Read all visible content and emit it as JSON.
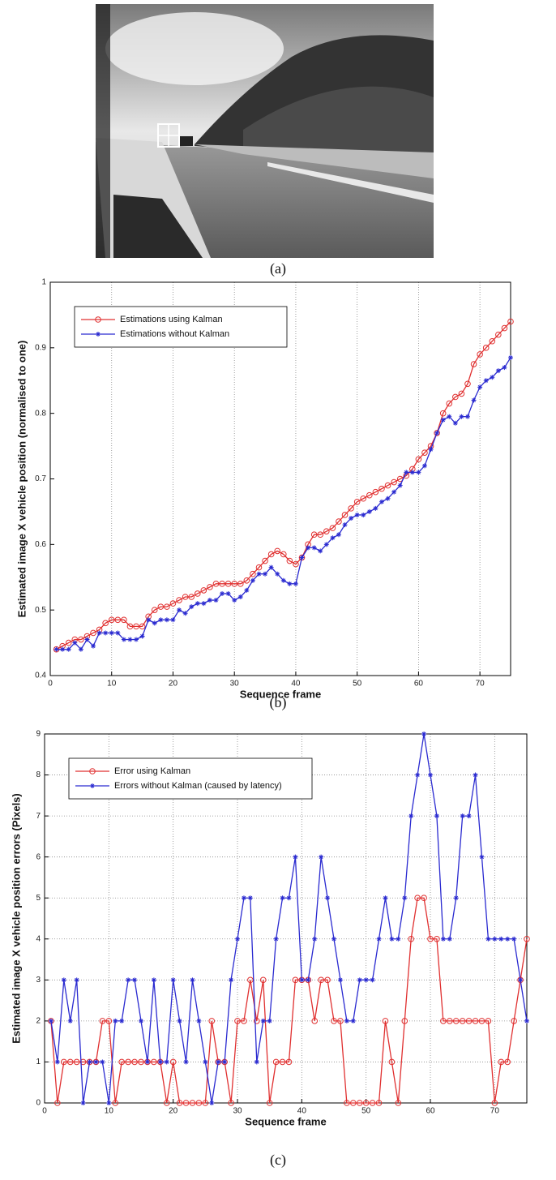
{
  "captions": [
    "(a)",
    "(b)",
    "(c)"
  ],
  "chart_data": [
    {
      "type": "line",
      "xlabel": "Sequence frame",
      "ylabel": "Estimated image X vehicle position (normalised to one)",
      "x": [
        1,
        2,
        3,
        4,
        5,
        6,
        7,
        8,
        9,
        10,
        11,
        12,
        13,
        14,
        15,
        16,
        17,
        18,
        19,
        20,
        21,
        22,
        23,
        24,
        25,
        26,
        27,
        28,
        29,
        30,
        31,
        32,
        33,
        34,
        35,
        36,
        37,
        38,
        39,
        40,
        41,
        42,
        43,
        44,
        45,
        46,
        47,
        48,
        49,
        50,
        51,
        52,
        53,
        54,
        55,
        56,
        57,
        58,
        59,
        60,
        61,
        62,
        63,
        64,
        65,
        66,
        67,
        68,
        69,
        70,
        71,
        72,
        73,
        74,
        75
      ],
      "series": [
        {
          "name": "Estimations using Kalman",
          "color": "#e03030",
          "marker": "o",
          "values": [
            0.44,
            0.445,
            0.45,
            0.455,
            0.455,
            0.46,
            0.465,
            0.47,
            0.48,
            0.485,
            0.485,
            0.485,
            0.475,
            0.475,
            0.475,
            0.49,
            0.5,
            0.505,
            0.505,
            0.51,
            0.515,
            0.52,
            0.52,
            0.525,
            0.53,
            0.535,
            0.54,
            0.54,
            0.54,
            0.54,
            0.54,
            0.545,
            0.555,
            0.565,
            0.575,
            0.585,
            0.59,
            0.585,
            0.575,
            0.57,
            0.58,
            0.6,
            0.615,
            0.615,
            0.62,
            0.625,
            0.635,
            0.645,
            0.655,
            0.665,
            0.67,
            0.675,
            0.68,
            0.685,
            0.69,
            0.695,
            0.7,
            0.705,
            0.715,
            0.73,
            0.74,
            0.75,
            0.77,
            0.8,
            0.815,
            0.825,
            0.83,
            0.845,
            0.875,
            0.89,
            0.9,
            0.91,
            0.92,
            0.93,
            0.94
          ]
        },
        {
          "name": "Estimations without Kalman",
          "color": "#2a2ad0",
          "marker": "*",
          "values": [
            0.44,
            0.44,
            0.44,
            0.45,
            0.44,
            0.455,
            0.445,
            0.465,
            0.465,
            0.465,
            0.465,
            0.455,
            0.455,
            0.455,
            0.46,
            0.485,
            0.48,
            0.485,
            0.485,
            0.485,
            0.5,
            0.495,
            0.505,
            0.51,
            0.51,
            0.515,
            0.515,
            0.525,
            0.525,
            0.515,
            0.52,
            0.53,
            0.545,
            0.555,
            0.555,
            0.565,
            0.555,
            0.545,
            0.54,
            0.54,
            0.58,
            0.595,
            0.595,
            0.59,
            0.6,
            0.61,
            0.615,
            0.63,
            0.64,
            0.645,
            0.645,
            0.65,
            0.655,
            0.665,
            0.67,
            0.68,
            0.69,
            0.71,
            0.71,
            0.71,
            0.72,
            0.745,
            0.77,
            0.79,
            0.795,
            0.785,
            0.795,
            0.795,
            0.82,
            0.84,
            0.85,
            0.855,
            0.865,
            0.87,
            0.885
          ]
        }
      ],
      "xlim": [
        0,
        75
      ],
      "xticks": [
        0,
        10,
        20,
        30,
        40,
        50,
        60,
        70
      ],
      "ylim": [
        0.4,
        1
      ],
      "yticks": [
        0.4,
        0.5,
        0.6,
        0.7,
        0.8,
        0.9,
        1
      ],
      "xgrid": true,
      "ygrid": false,
      "legend": "upper left"
    },
    {
      "type": "line",
      "xlabel": "Sequence frame",
      "ylabel": "Estimated image X vehicle  position errors (Pixels)",
      "x": [
        1,
        2,
        3,
        4,
        5,
        6,
        7,
        8,
        9,
        10,
        11,
        12,
        13,
        14,
        15,
        16,
        17,
        18,
        19,
        20,
        21,
        22,
        23,
        24,
        25,
        26,
        27,
        28,
        29,
        30,
        31,
        32,
        33,
        34,
        35,
        36,
        37,
        38,
        39,
        40,
        41,
        42,
        43,
        44,
        45,
        46,
        47,
        48,
        49,
        50,
        51,
        52,
        53,
        54,
        55,
        56,
        57,
        58,
        59,
        60,
        61,
        62,
        63,
        64,
        65,
        66,
        67,
        68,
        69,
        70,
        71,
        72,
        73,
        74,
        75
      ],
      "series": [
        {
          "name": "Error using Kalman",
          "color": "#e03030",
          "marker": "o",
          "values": [
            2,
            0,
            1,
            1,
            1,
            1,
            1,
            1,
            2,
            2,
            0,
            1,
            1,
            1,
            1,
            1,
            1,
            1,
            0,
            1,
            0,
            0,
            0,
            0,
            0,
            2,
            1,
            1,
            0,
            2,
            2,
            3,
            2,
            3,
            0,
            1,
            1,
            1,
            3,
            3,
            3,
            2,
            3,
            3,
            2,
            2,
            0,
            0,
            0,
            0,
            0,
            0,
            2,
            1,
            0,
            2,
            4,
            5,
            5,
            4,
            4,
            2,
            2,
            2,
            2,
            2,
            2,
            2,
            2,
            0,
            1,
            1,
            2,
            3,
            4
          ]
        },
        {
          "name": "Errors without Kalman (caused by latency)",
          "color": "#2a2ad0",
          "marker": "*",
          "values": [
            2,
            1,
            3,
            2,
            3,
            0,
            1,
            1,
            1,
            0,
            2,
            2,
            3,
            3,
            2,
            1,
            3,
            1,
            1,
            3,
            2,
            1,
            3,
            2,
            1,
            0,
            1,
            1,
            3,
            4,
            5,
            5,
            1,
            2,
            2,
            4,
            5,
            5,
            6,
            3,
            3,
            4,
            6,
            5,
            4,
            3,
            2,
            2,
            3,
            3,
            3,
            4,
            5,
            4,
            4,
            5,
            7,
            8,
            9,
            8,
            7,
            4,
            4,
            5,
            7,
            7,
            8,
            6,
            4,
            4,
            4,
            4,
            4,
            3,
            2
          ]
        }
      ],
      "xlim": [
        0,
        75
      ],
      "xticks": [
        0,
        10,
        20,
        30,
        40,
        50,
        60,
        70
      ],
      "ylim": [
        0,
        9
      ],
      "yticks": [
        0,
        1,
        2,
        3,
        4,
        5,
        6,
        7,
        8,
        9
      ],
      "xgrid": true,
      "ygrid": true,
      "legend": "upper left"
    }
  ]
}
